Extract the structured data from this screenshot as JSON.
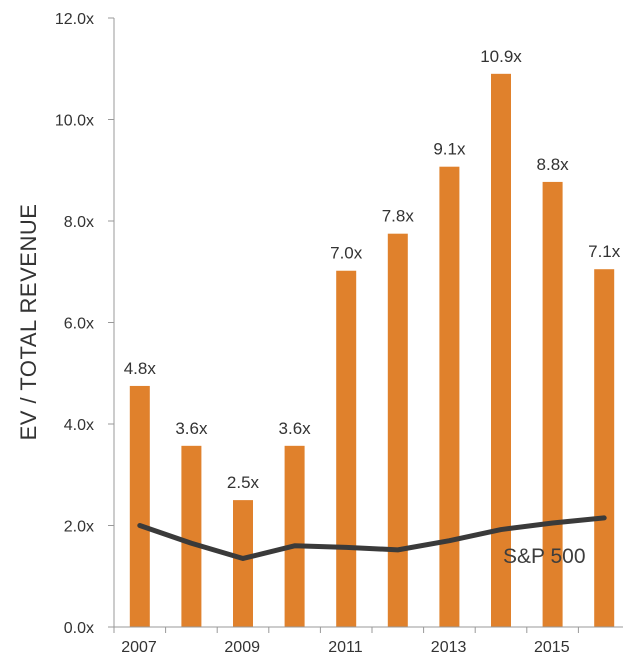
{
  "chart_data": {
    "type": "bar",
    "title": "",
    "ylabel": "EV / TOTAL REVENUE",
    "xlabel": "",
    "ylim": [
      0,
      12
    ],
    "y_ticks": [
      "0.0x",
      "2.0x",
      "4.0x",
      "6.0x",
      "8.0x",
      "10.0x",
      "12.0x"
    ],
    "x_tick_labels": [
      "2007",
      "2009",
      "2011",
      "2013",
      "2015"
    ],
    "categories": [
      "2007",
      "2008",
      "2009",
      "2010",
      "2011",
      "2012",
      "2013",
      "2014",
      "2015",
      "2016"
    ],
    "grid": false,
    "series": [
      {
        "type": "bar",
        "color": "#E0812C",
        "values": [
          4.75,
          3.57,
          2.5,
          3.57,
          7.02,
          7.75,
          9.07,
          10.9,
          8.77,
          7.05
        ],
        "labels": [
          "4.8x",
          "3.6x",
          "2.5x",
          "3.6x",
          "7.0x",
          "7.8x",
          "9.1x",
          "10.9x",
          "8.8x",
          "7.1x"
        ]
      },
      {
        "name": "S&P 500",
        "type": "line",
        "color": "#3a3a3a",
        "values": [
          2.0,
          1.65,
          1.35,
          1.6,
          1.57,
          1.52,
          1.7,
          1.92,
          2.05,
          2.15
        ]
      }
    ]
  }
}
